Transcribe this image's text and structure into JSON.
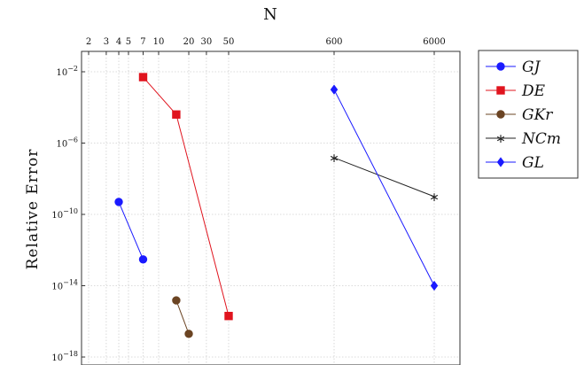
{
  "chart_data": {
    "type": "line",
    "xlabel": "N",
    "ylabel": "Relative Error",
    "x_scale": "log",
    "y_scale": "log",
    "x_ticks": [
      2,
      3,
      4,
      5,
      7,
      10,
      20,
      30,
      50,
      600,
      6000
    ],
    "y_ticks": [
      {
        "value": 0.01,
        "label": "10^-2"
      },
      {
        "value": 1e-06,
        "label": "10^-6"
      },
      {
        "value": 1e-10,
        "label": "10^-10"
      },
      {
        "value": 1e-14,
        "label": "10^-14"
      },
      {
        "value": 1e-18,
        "label": "10^-18"
      }
    ],
    "ylim": [
      1e-18,
      0.1
    ],
    "grid": true,
    "legend_position": "right",
    "series": [
      {
        "name": "GJ",
        "color": "#1a1aff",
        "marker": "circle",
        "points": [
          [
            4,
            5e-10
          ],
          [
            7,
            3e-13
          ]
        ]
      },
      {
        "name": "DE",
        "color": "#e0141e",
        "marker": "square",
        "points": [
          [
            7,
            0.005
          ],
          [
            15,
            4e-05
          ],
          [
            50,
            2e-16
          ]
        ]
      },
      {
        "name": "GKr",
        "color": "#6b4423",
        "marker": "circle",
        "points": [
          [
            15,
            1.5e-15
          ],
          [
            20,
            2e-17
          ]
        ]
      },
      {
        "name": "NCm",
        "color": "#222222",
        "marker": "star",
        "points": [
          [
            600,
            1.5e-07
          ],
          [
            6000,
            1e-09
          ]
        ]
      },
      {
        "name": "GL",
        "color": "#1a1aff",
        "marker": "diamond",
        "points": [
          [
            600,
            0.001
          ],
          [
            6000,
            1e-14
          ]
        ]
      }
    ]
  }
}
